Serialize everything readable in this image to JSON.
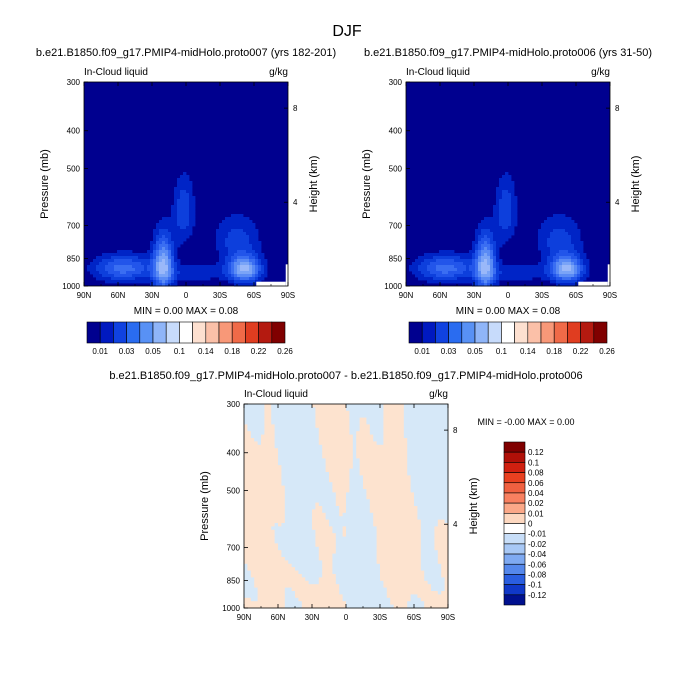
{
  "page_title": "DJF",
  "chart_data": [
    {
      "id": "panel1",
      "type": "contour",
      "title": "b.e21.B1850.f09_g17.PMIP4-midHolo.proto007 (yrs 182-201)",
      "left_label": "In-Cloud liquid",
      "right_label": "g/kg",
      "xlabel": "",
      "ylabel": "Pressure (mb)",
      "y2label": "Height (km)",
      "x_ticks": [
        "90N",
        "60N",
        "30N",
        "0",
        "30S",
        "60S",
        "90S"
      ],
      "y_ticks": [
        "300",
        "400",
        "500",
        "700",
        "850",
        "1000"
      ],
      "y2_ticks": [
        "8",
        "4"
      ],
      "xlim": [
        90,
        -90
      ],
      "ylim": [
        1000,
        300
      ],
      "min_max": "MIN =  0.00   MAX =  0.08",
      "colorbar_labels": [
        "0.01",
        "0.03",
        "0.05",
        "0.1",
        "0.14",
        "0.18",
        "0.22",
        "0.26"
      ],
      "colorbar_colors": [
        "#00008f",
        "#0019c0",
        "#1042e0",
        "#2a6cf0",
        "#5891f5",
        "#8fb5f8",
        "#c7dbfb",
        "#ffffff",
        "#fde0d0",
        "#fbc0a8",
        "#f89878",
        "#f06a48",
        "#e03d20",
        "#b41a10",
        "#800000"
      ],
      "contour_levels": [
        0.01,
        0.02,
        0.03,
        0.04,
        0.05,
        0.06,
        0.07
      ],
      "contour_colors": [
        "#0024c6",
        "#0d3fdc",
        "#2255ea",
        "#3a6ef2",
        "#5a8bf5",
        "#7aa4f7",
        "#9ab8f9"
      ]
    },
    {
      "id": "panel2",
      "type": "contour",
      "title": "b.e21.B1850.f09_g17.PMIP4-midHolo.proto006 (yrs 31-50)",
      "left_label": "In-Cloud liquid",
      "right_label": "g/kg",
      "xlabel": "",
      "ylabel": "Pressure (mb)",
      "y2label": "Height (km)",
      "x_ticks": [
        "90N",
        "60N",
        "30N",
        "0",
        "30S",
        "60S",
        "90S"
      ],
      "y_ticks": [
        "300",
        "400",
        "500",
        "700",
        "850",
        "1000"
      ],
      "y2_ticks": [
        "8",
        "4"
      ],
      "xlim": [
        90,
        -90
      ],
      "ylim": [
        1000,
        300
      ],
      "min_max": "MIN =  0.00   MAX =  0.08",
      "colorbar_labels": [
        "0.01",
        "0.03",
        "0.05",
        "0.1",
        "0.14",
        "0.18",
        "0.22",
        "0.26"
      ],
      "colorbar_colors": [
        "#00008f",
        "#0019c0",
        "#1042e0",
        "#2a6cf0",
        "#5891f5",
        "#8fb5f8",
        "#c7dbfb",
        "#ffffff",
        "#fde0d0",
        "#fbc0a8",
        "#f89878",
        "#f06a48",
        "#e03d20",
        "#b41a10",
        "#800000"
      ],
      "contour_levels": [
        0.01,
        0.02,
        0.03,
        0.04,
        0.05,
        0.06,
        0.07
      ],
      "contour_colors": [
        "#0024c6",
        "#0d3fdc",
        "#2255ea",
        "#3a6ef2",
        "#5a8bf5",
        "#7aa4f7",
        "#9ab8f9"
      ]
    },
    {
      "id": "panel3",
      "type": "contour",
      "title": "b.e21.B1850.f09_g17.PMIP4-midHolo.proto007 - b.e21.B1850.f09_g17.PMIP4-midHolo.proto006",
      "left_label": "In-Cloud liquid",
      "right_label": "g/kg",
      "xlabel": "",
      "ylabel": "Pressure (mb)",
      "y2label": "Height (km)",
      "x_ticks": [
        "90N",
        "60N",
        "30N",
        "0",
        "30S",
        "60S",
        "90S"
      ],
      "y_ticks": [
        "300",
        "400",
        "500",
        "700",
        "850",
        "1000"
      ],
      "y2_ticks": [
        "8",
        "4"
      ],
      "xlim": [
        90,
        -90
      ],
      "ylim": [
        1000,
        300
      ],
      "min_max": "MIN =  -0.00   MAX =  0.00",
      "colorbar_labels": [
        "0.12",
        "0.1",
        "0.08",
        "0.06",
        "0.04",
        "0.02",
        "0.01",
        "0",
        "-0.01",
        "-0.02",
        "-0.04",
        "-0.06",
        "-0.08",
        "-0.1",
        "-0.12"
      ],
      "colorbar_colors": [
        "#800000",
        "#b01008",
        "#d02010",
        "#e84020",
        "#f06040",
        "#f88060",
        "#fba888",
        "#fdd8c0",
        "#ffffff",
        "#c8def8",
        "#a8c8f5",
        "#7faaf2",
        "#5588ec",
        "#2a5ee0",
        "#1038c8",
        "#00108f"
      ],
      "diff_colors": {
        "positive": "#fde3cf",
        "negative": "#d6e8f8"
      }
    }
  ]
}
